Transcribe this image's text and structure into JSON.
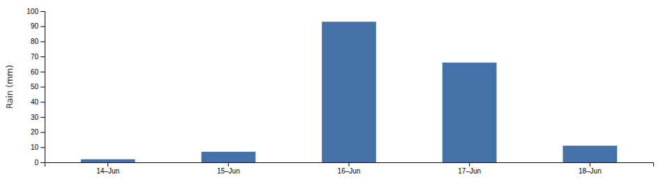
{
  "chart_data": {
    "type": "bar",
    "categories": [
      "14–Jun",
      "15–Jun",
      "16–Jun",
      "17–Jun",
      "18–Jun"
    ],
    "values": [
      2,
      7,
      93,
      66,
      11
    ],
    "color": "#4472a8",
    "ylabel": "Rain (mm)",
    "ylim": [
      0,
      100
    ],
    "yticks": [
      0,
      10,
      20,
      30,
      40,
      50,
      60,
      70,
      80,
      90,
      100
    ],
    "grid": false
  }
}
